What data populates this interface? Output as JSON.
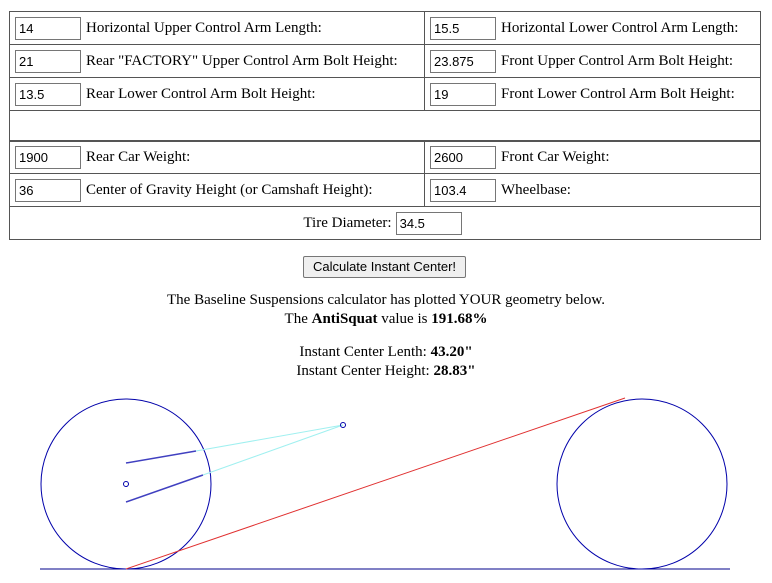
{
  "form": {
    "rows": [
      [
        {
          "value": "14",
          "label": "Horizontal Upper Control Arm Length:"
        },
        {
          "value": "15.5",
          "label": "Horizontal Lower Control Arm Length:"
        }
      ],
      [
        {
          "value": "21",
          "label": "Rear \"FACTORY\" Upper Control Arm Bolt Height:"
        },
        {
          "value": "23.875",
          "label": "Front Upper Control Arm Bolt Height:"
        }
      ],
      [
        {
          "value": "13.5",
          "label": "Rear Lower Control Arm Bolt Height:"
        },
        {
          "value": "19",
          "label": "Front Lower Control Arm Bolt Height:"
        }
      ],
      [
        {
          "value": "1900",
          "label": "Rear Car Weight:"
        },
        {
          "value": "2600",
          "label": "Front Car Weight:"
        }
      ],
      [
        {
          "value": "36",
          "label": "Center of Gravity Height (or Camshaft Height):"
        },
        {
          "value": "103.4",
          "label": "Wheelbase:"
        }
      ]
    ],
    "tire": {
      "label": "Tire Diameter:",
      "value": "34.5"
    }
  },
  "button": "Calculate Instant Center!",
  "results": {
    "intro": "The Baseline Suspensions calculator has plotted YOUR geometry below.",
    "antisquat": [
      "The",
      "AntiSquat",
      "value is",
      "191.68%"
    ],
    "ic_length": {
      "label": "Instant Center Lenth:",
      "value": "43.20\""
    },
    "ic_height": {
      "label": "Instant Center Height:",
      "value": "28.83\""
    }
  }
}
